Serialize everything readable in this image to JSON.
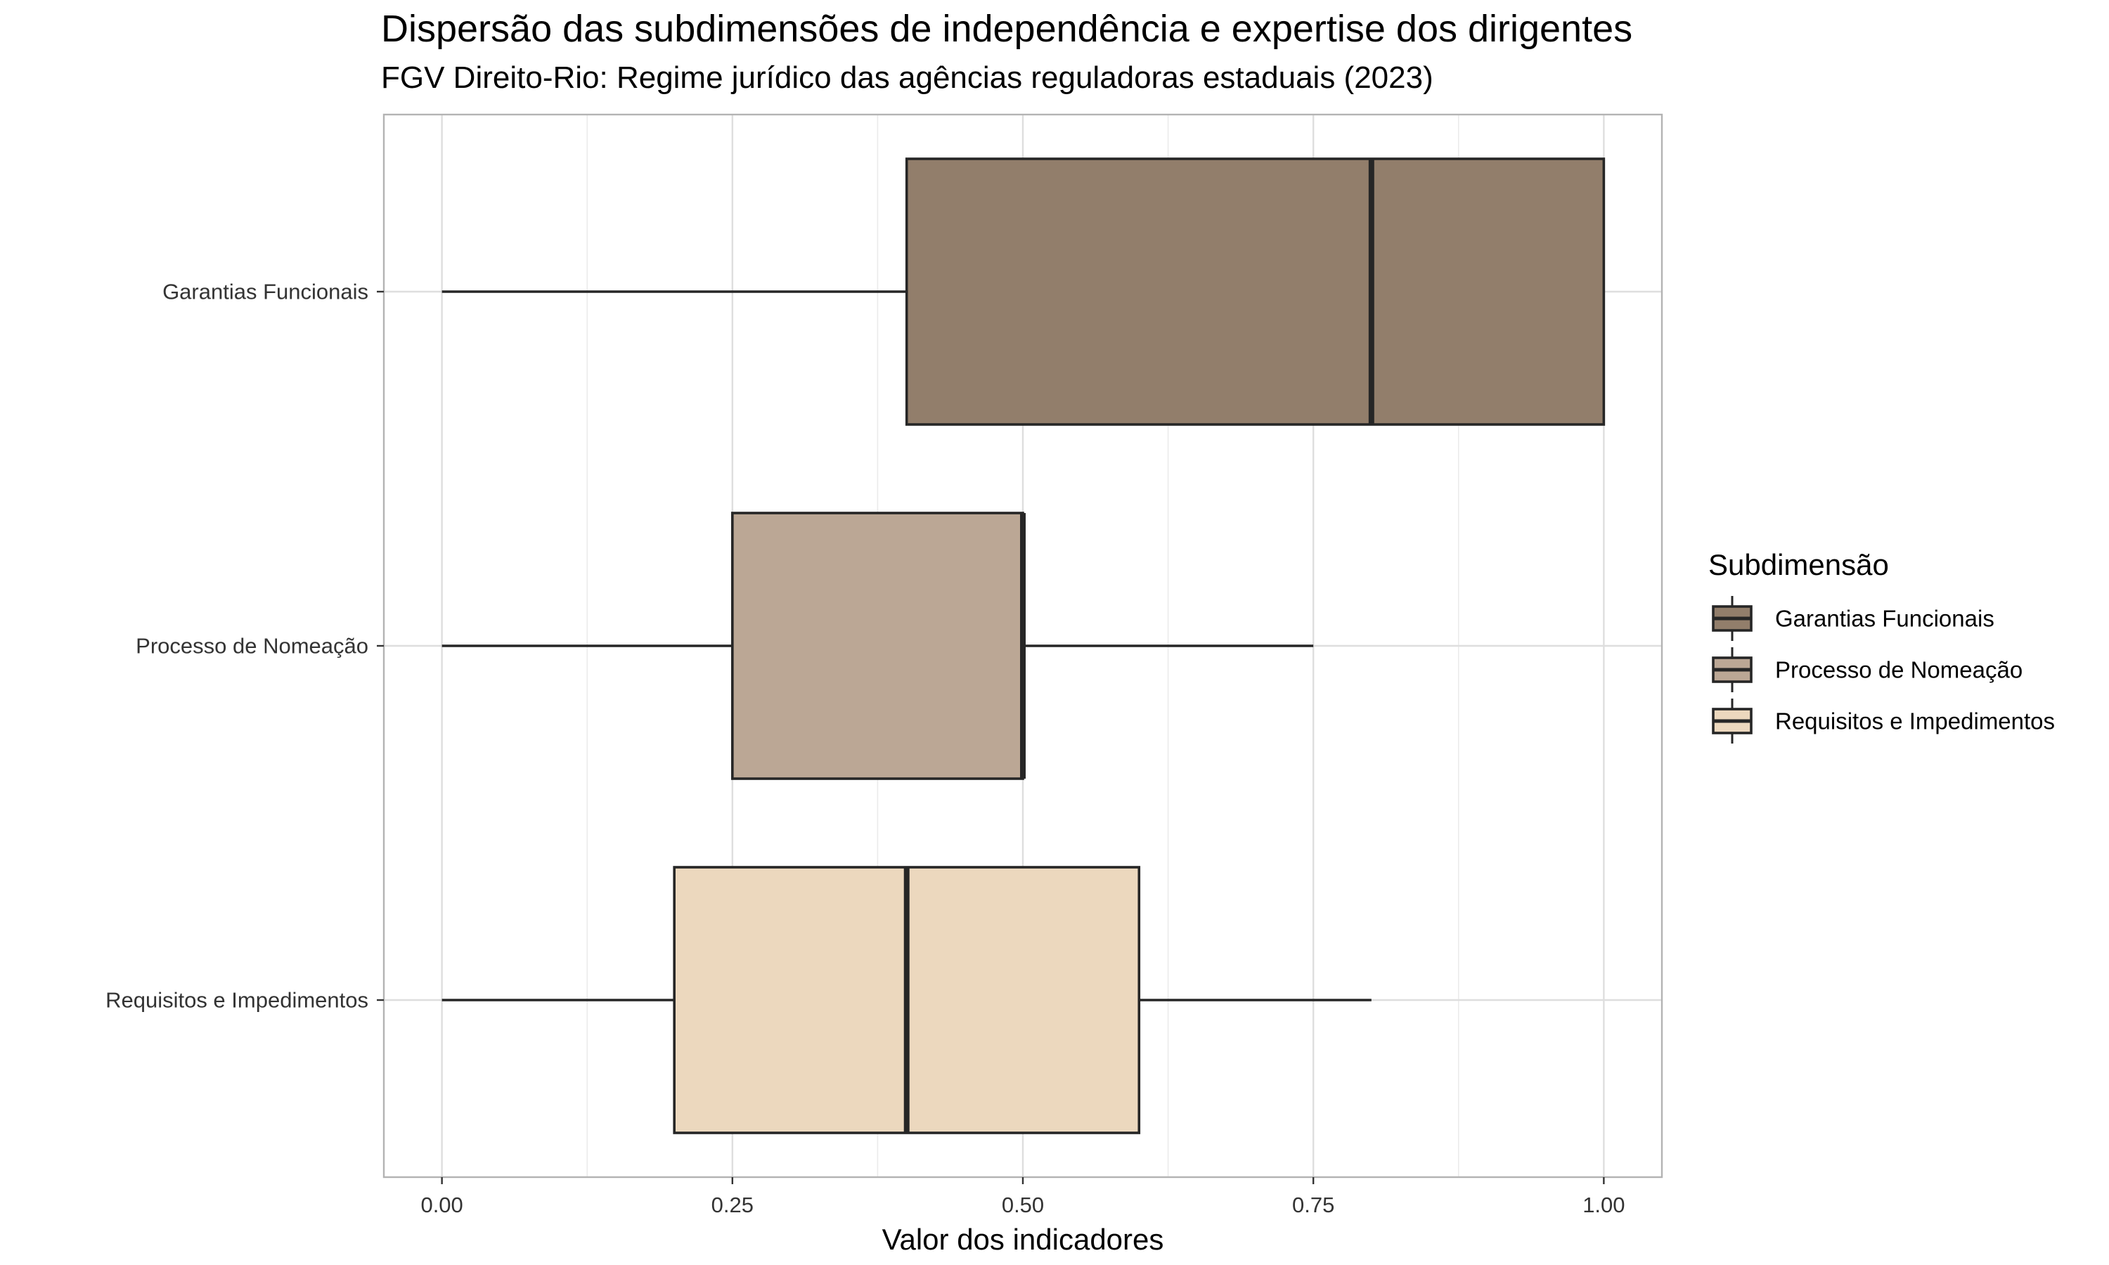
{
  "chart_data": {
    "type": "boxplot",
    "orientation": "horizontal",
    "title": "Dispersão das subdimensões de independência e expertise dos dirigentes",
    "subtitle": "FGV Direito-Rio: Regime jurídico das agências reguladoras estaduais (2023)",
    "xlabel": "Valor dos indicadores",
    "ylabel": "",
    "xlim": [
      -0.05,
      1.05
    ],
    "x_ticks": [
      0.0,
      0.25,
      0.5,
      0.75,
      1.0
    ],
    "x_tick_labels": [
      "0.00",
      "0.25",
      "0.50",
      "0.75",
      "1.00"
    ],
    "grid": true,
    "legend": {
      "title": "Subdimensão",
      "placement": "right"
    },
    "categories": [
      "Garantias Funcionais",
      "Processo de Nomeação",
      "Requisitos e Impedimentos"
    ],
    "series": [
      {
        "name": "Garantias Funcionais",
        "color": "#927e6b",
        "min": 0.0,
        "q1": 0.4,
        "median": 0.8,
        "q3": 1.0,
        "max": 1.0
      },
      {
        "name": "Processo de Nomeação",
        "color": "#bba795",
        "min": 0.0,
        "q1": 0.25,
        "median": 0.5,
        "q3": 0.5,
        "max": 0.75
      },
      {
        "name": "Requisitos e Impedimentos",
        "color": "#ecd8be",
        "min": 0.0,
        "q1": 0.2,
        "median": 0.4,
        "q3": 0.6,
        "max": 0.8
      }
    ]
  }
}
